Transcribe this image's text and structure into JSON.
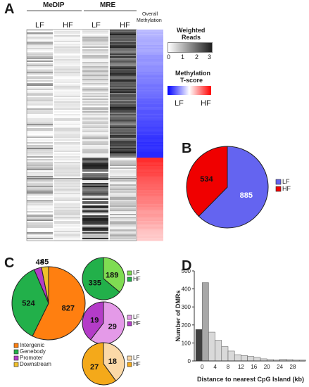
{
  "panels": {
    "a": "A",
    "b": "B",
    "c": "C",
    "d": "D"
  },
  "panel_a": {
    "medip_label": "MeDIP",
    "mre_label": "MRE",
    "medip_lf": "LF",
    "medip_hf": "HF",
    "mre_lf": "LF",
    "mre_hf": "HF",
    "overall_label_line1": "Overall",
    "overall_label_line2": "Methylation",
    "weighted_title_line1": "Weighted",
    "weighted_title_line2": "Reads",
    "weighted_ticks": [
      "0",
      "1",
      "2",
      "3"
    ],
    "tscore_title_line1": "Methylation",
    "tscore_title_line2": "T-score",
    "tscore_lf": "LF",
    "tscore_hf": "HF",
    "colors": {
      "low_meth": "#2f2fff",
      "high_meth": "#ff2020",
      "heat_dark": "#1e1e1e"
    }
  },
  "chart_data": [
    {
      "id": "B",
      "type": "pie",
      "labels": [
        "LF",
        "HF"
      ],
      "values": [
        885,
        534
      ],
      "colors": [
        "#6464f0",
        "#f00000"
      ],
      "legend": [
        "LF",
        "HF"
      ],
      "legend_position": "right"
    },
    {
      "id": "C-main",
      "type": "pie",
      "labels": [
        "Intergenic",
        "Genebody",
        "Promoter",
        "Downstream"
      ],
      "values": [
        827,
        524,
        48,
        45
      ],
      "colors": [
        "#ff7f10",
        "#22b04a",
        "#b43cc8",
        "#f0c02a"
      ],
      "legend": [
        "Intergenic",
        "Genebody",
        "Promoter",
        "Downstream"
      ],
      "legend_position": "bottom"
    },
    {
      "id": "C-genebody",
      "type": "pie",
      "labels": [
        "LF",
        "HF"
      ],
      "values": [
        189,
        335
      ],
      "colors": [
        "#7fdc52",
        "#22b04a"
      ],
      "legend": [
        "LF",
        "HF"
      ]
    },
    {
      "id": "C-promoter",
      "type": "pie",
      "labels": [
        "LF",
        "HF"
      ],
      "values": [
        29,
        19
      ],
      "colors": [
        "#e49ae8",
        "#b43cc8"
      ],
      "legend": [
        "LF",
        "HF"
      ]
    },
    {
      "id": "C-downstream",
      "type": "pie",
      "labels": [
        "LF",
        "HF"
      ],
      "values": [
        18,
        27
      ],
      "colors": [
        "#fbd9a8",
        "#f4a91a"
      ],
      "legend": [
        "LF",
        "HF"
      ]
    },
    {
      "id": "D",
      "type": "bar",
      "xlabel": "Distance to nearest CpG Island (kb)",
      "ylabel": "Number of DMRs",
      "ylim": [
        0,
        500
      ],
      "yticks": [
        0,
        100,
        200,
        300,
        400,
        500
      ],
      "xticks": [
        "0",
        "4",
        "8",
        "12",
        "16",
        "20",
        "24",
        "28"
      ],
      "bin_width_kb": 2,
      "series": [
        {
          "values": [
            175,
            435,
            160,
            115,
            80,
            55,
            35,
            30,
            25,
            20,
            12,
            8,
            5,
            10,
            8,
            5,
            5
          ],
          "colors": [
            "#404040",
            "#a8a8a8",
            "#d9d9d9",
            "#d9d9d9",
            "#d9d9d9",
            "#d9d9d9",
            "#d9d9d9",
            "#d9d9d9",
            "#d9d9d9",
            "#d9d9d9",
            "#d9d9d9",
            "#d9d9d9",
            "#d9d9d9",
            "#d9d9d9",
            "#d9d9d9",
            "#d9d9d9",
            "#d9d9d9"
          ]
        }
      ]
    }
  ]
}
